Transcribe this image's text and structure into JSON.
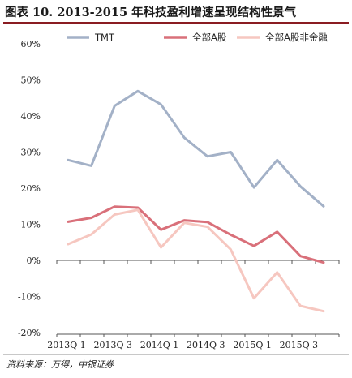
{
  "title": "图表 10. 2013-2015 年科技盈利增速呈现结构性景气",
  "source": "资料来源：万得，中银证券",
  "chart_data": {
    "type": "line",
    "x": [
      "2013Q1",
      "2013Q2",
      "2013Q3",
      "2013Q4",
      "2014Q1",
      "2014Q2",
      "2014Q3",
      "2014Q4",
      "2015Q1",
      "2015Q2",
      "2015Q3",
      "2015Q4"
    ],
    "tick_labels": [
      "2013Q1",
      "2013Q3",
      "2014Q1",
      "2014Q3",
      "2015Q1",
      "2015Q3"
    ],
    "ylim": [
      -20,
      60
    ],
    "yticks": [
      "60%",
      "50%",
      "40%",
      "30%",
      "20%",
      "10%",
      "0%",
      "-10%",
      "-20%"
    ],
    "grid": false,
    "legend_position": "top",
    "series": [
      {
        "name": "TMT",
        "color": "#a3b1c7",
        "values": [
          27.8,
          26.2,
          42.8,
          46.9,
          43.2,
          34.0,
          28.8,
          30.0,
          20.2,
          27.8,
          20.5,
          15.0
        ]
      },
      {
        "name": "全部A股",
        "color": "#d9707a",
        "values": [
          10.7,
          11.8,
          14.9,
          14.6,
          8.5,
          11.1,
          10.6,
          7.1,
          4.0,
          7.9,
          1.2,
          -0.6
        ]
      },
      {
        "name": "全部A股非金融",
        "color": "#f6c7c0",
        "values": [
          4.5,
          7.2,
          12.7,
          14.0,
          3.6,
          10.4,
          9.3,
          3.0,
          -10.5,
          -3.3,
          -12.6,
          -14.1
        ]
      }
    ]
  }
}
